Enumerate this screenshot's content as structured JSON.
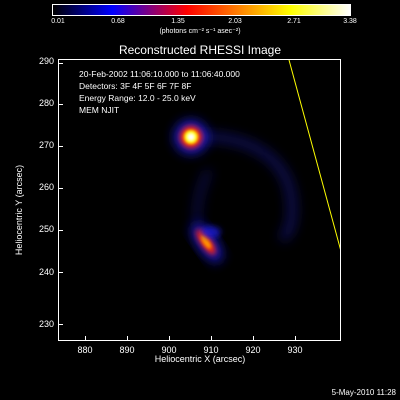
{
  "colorbar": {
    "ticks": [
      "0.01",
      "0.68",
      "1.35",
      "2.03",
      "2.71",
      "3.38"
    ],
    "unit_label": "(photons cm⁻² s⁻¹ asec⁻²)"
  },
  "title": "Reconstructed RHESSI Image",
  "info": {
    "line1": "20-Feb-2002 11:06:10.000 to 11:06:40.000",
    "line2": "Detectors: 3F 4F 5F 6F 7F 8F",
    "line3": "Energy Range: 12.0 - 25.0 keV",
    "line4": "MEM NJIT"
  },
  "axes": {
    "xlabel": "Heliocentric X (arcsec)",
    "ylabel": "Heliocentric Y (arcsec)",
    "xticks": [
      "880",
      "890",
      "900",
      "910",
      "920",
      "930"
    ],
    "yticks": [
      "290",
      "280",
      "270",
      "260",
      "250",
      "240",
      "230"
    ]
  },
  "timestamp": "5-May-2010 11:28",
  "colors": {
    "background": "#000000",
    "limb_line": "#ffff00"
  }
}
